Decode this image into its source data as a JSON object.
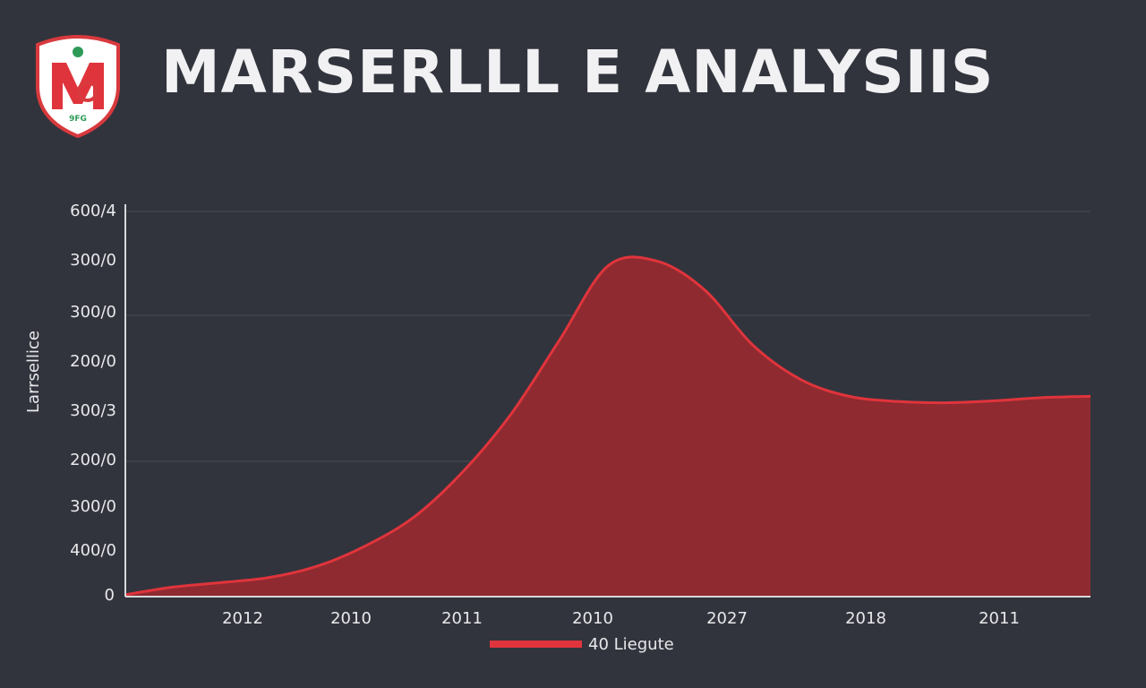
{
  "title": "MARSERLLL E ANALYSIIS",
  "logo": {
    "text": "9FG",
    "colors": {
      "shield": "#ffffff",
      "border": "#d83a3e",
      "mark": "#e0343c",
      "dot": "#2e9a58"
    }
  },
  "colors": {
    "background": "#32343d",
    "area_fill": "#8e2a30",
    "area_line": "#e0343c",
    "grid": "#4a4c55",
    "axis": "#d8d8dc",
    "text": "#e9e9ec"
  },
  "chart_data": {
    "type": "area",
    "ylabel": "Larrsellice",
    "y_tick_labels": [
      "600/4",
      "300/0",
      "300/0",
      "200/0",
      "300/3",
      "200/0",
      "300/0",
      "400/0",
      "0"
    ],
    "x_tick_labels": [
      "2012",
      "2010",
      "2011",
      "2010",
      "2027",
      "2018",
      "2011"
    ],
    "legend": {
      "label": "40  Liegute",
      "position": "bottom-center"
    },
    "grid": true,
    "ylim": [
      0,
      600
    ],
    "series": [
      {
        "x": [
          0,
          0.05,
          0.1,
          0.15,
          0.2,
          0.25,
          0.3,
          0.35,
          0.4,
          0.45,
          0.5,
          0.55,
          0.6,
          0.65,
          0.7,
          0.75,
          0.8,
          0.85,
          0.9,
          0.95,
          1.0
        ],
        "values": [
          3,
          15,
          22,
          30,
          48,
          80,
          125,
          195,
          285,
          400,
          515,
          523,
          478,
          392,
          338,
          312,
          304,
          302,
          305,
          310,
          312
        ]
      }
    ]
  }
}
